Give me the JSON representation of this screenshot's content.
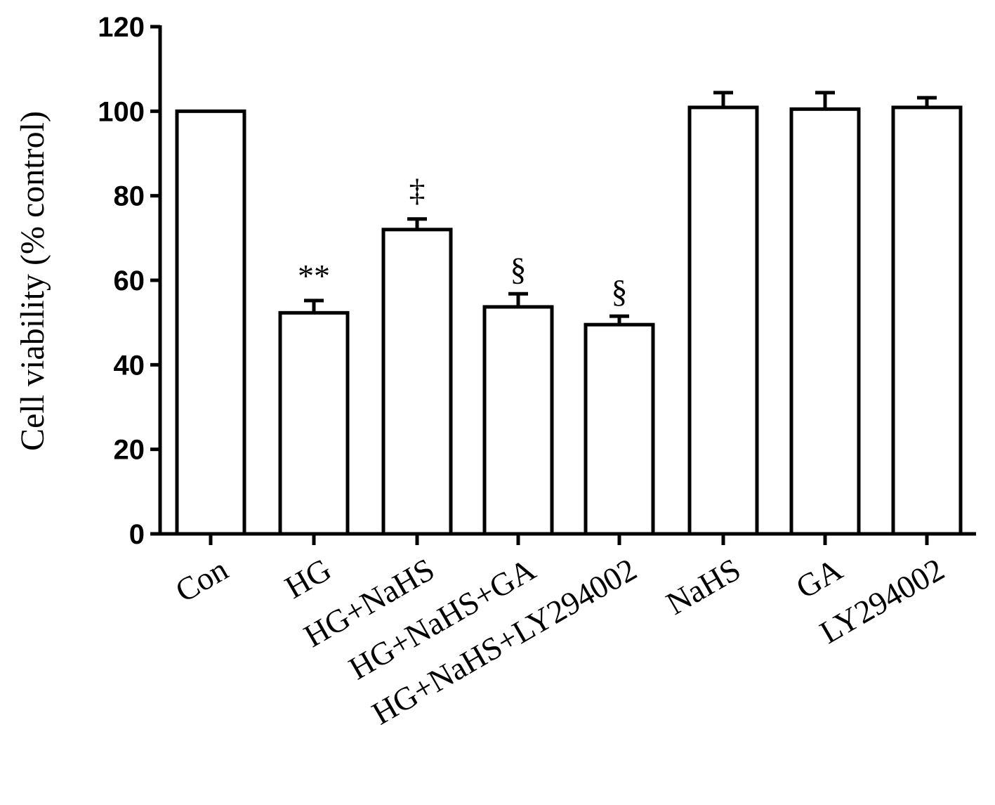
{
  "chart_data": {
    "type": "bar",
    "title": "",
    "xlabel": "",
    "ylabel": "Cell viability (% control)",
    "ylim": [
      0,
      120
    ],
    "yticks": [
      0,
      20,
      40,
      60,
      80,
      100,
      120
    ],
    "grid": false,
    "categories": [
      "Con",
      "HG",
      "HG+NaHS",
      "HG+NaHS+GA",
      "HG+NaHS+LY294002",
      "NaHS",
      "GA",
      "LY294002"
    ],
    "values": [
      100,
      52.3,
      72.0,
      53.7,
      49.5,
      100.9,
      100.5,
      100.9
    ],
    "error_upper": [
      0,
      2.9,
      2.5,
      3.1,
      2.0,
      3.5,
      3.9,
      2.3
    ],
    "annotations": [
      "",
      "**",
      "‡",
      "§",
      "§",
      "",
      "",
      ""
    ],
    "bar_fill": "#ffffff",
    "bar_stroke": "#000000"
  }
}
